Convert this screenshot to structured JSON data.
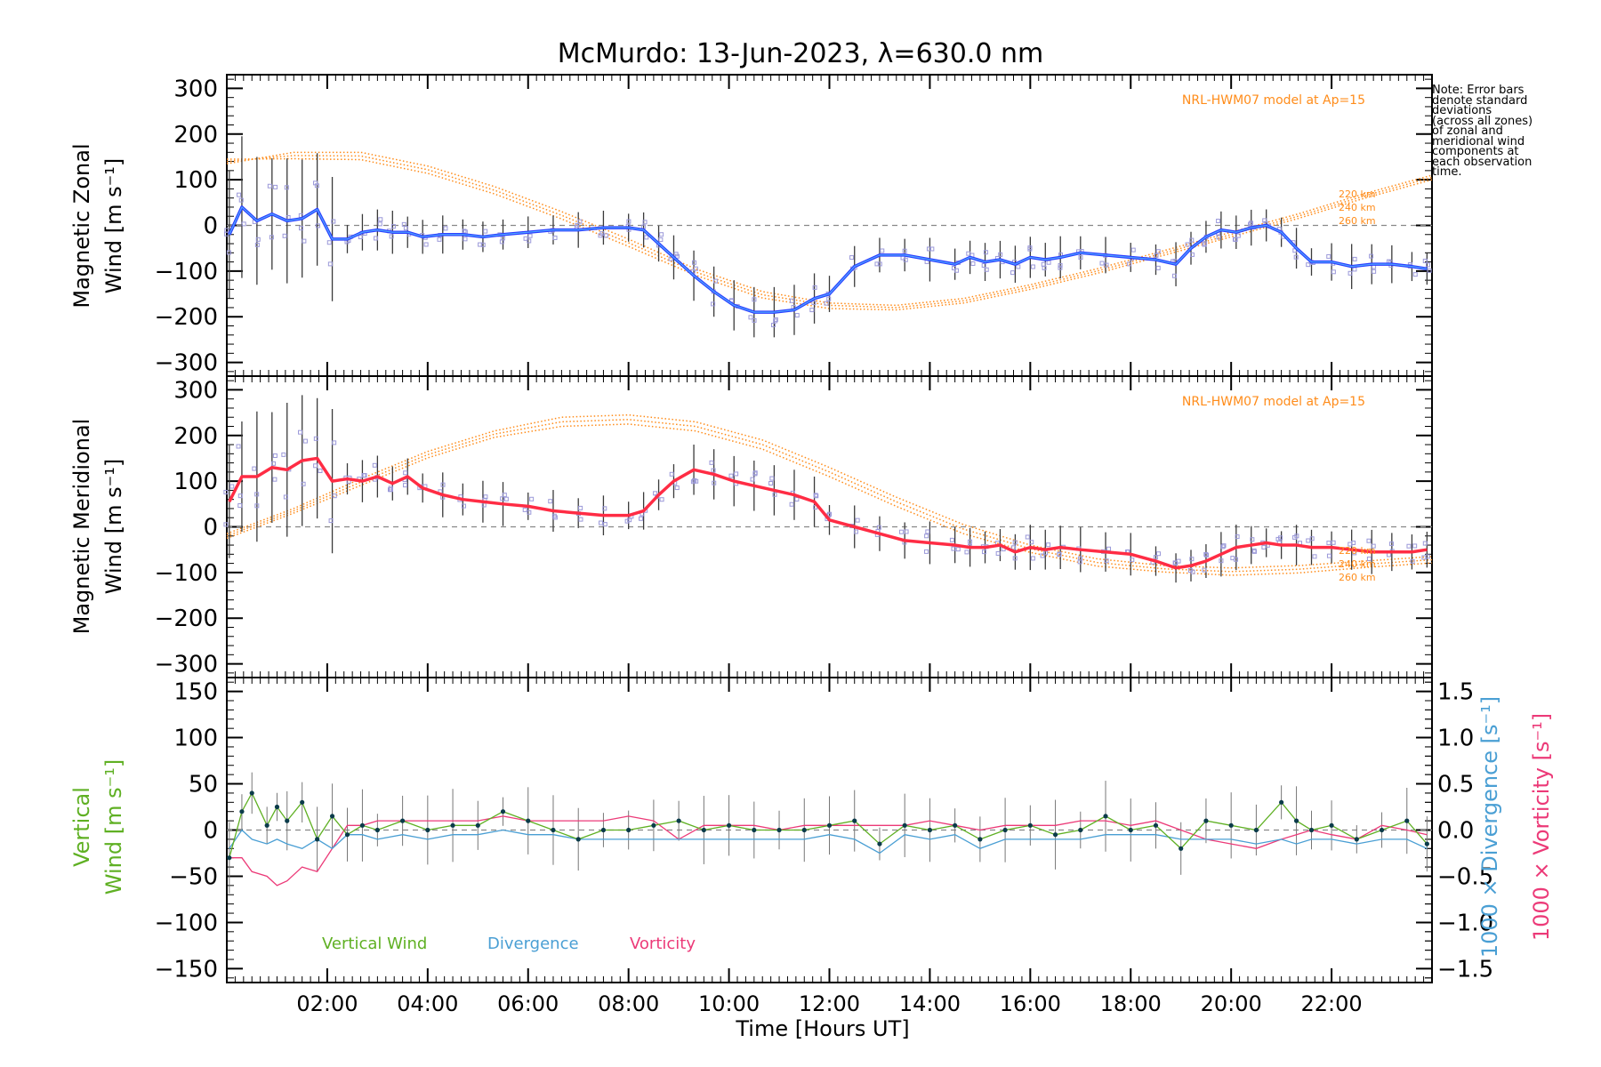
{
  "title": "McMurdo: 13-Jun-2023, λ=630.0 nm",
  "xlabel": "Time [Hours UT]",
  "x_ticks": [
    "02:00",
    "04:00",
    "06:00",
    "08:00",
    "10:00",
    "12:00",
    "14:00",
    "16:00",
    "18:00",
    "20:00",
    "22:00"
  ],
  "note_lines": [
    "Note: Error bars",
    "denote standard",
    "deviations",
    "(across all zones)",
    "of zonal and",
    "meridional wind",
    "components at",
    "each observation",
    "time."
  ],
  "model_label": "NRL-HWM07 model at Ap=15",
  "altitude_labels": [
    "220 km",
    "240 km",
    "260 km"
  ],
  "legend": {
    "vertical": "Vertical Wind",
    "divergence": "Divergence",
    "vorticity": "Vorticity"
  },
  "colors": {
    "zonal": "#2b3dff",
    "zonal_inner": "#4fa7ff",
    "meridional": "#ff2c44",
    "model": "#ff8c1a",
    "vertical": "#5fb023",
    "divergence": "#4a9fd4",
    "vorticity": "#ec3a78",
    "scatter": "#9b99d9"
  },
  "chart_data": [
    {
      "type": "line",
      "panel": "zonal",
      "ylabel_line1": "Magnetic Zonal",
      "ylabel_line2": "Wind [m s⁻¹]",
      "ylim": [
        -330,
        330
      ],
      "yticks": [
        "300",
        "200",
        "100",
        "0",
        "−100",
        "−200",
        "−300"
      ],
      "ytick_values": [
        300,
        200,
        100,
        0,
        -100,
        -200,
        -300
      ],
      "x_hours": [
        0.05,
        0.3,
        0.6,
        0.9,
        1.2,
        1.5,
        1.8,
        2.1,
        2.4,
        2.7,
        3.0,
        3.3,
        3.6,
        3.9,
        4.3,
        4.7,
        5.1,
        5.5,
        6.0,
        6.5,
        7.0,
        7.5,
        8.0,
        8.3,
        8.6,
        8.9,
        9.3,
        9.7,
        10.1,
        10.5,
        10.9,
        11.3,
        11.7,
        12.0,
        12.5,
        13.0,
        13.5,
        14.0,
        14.5,
        14.8,
        15.1,
        15.4,
        15.7,
        16.0,
        16.3,
        16.6,
        17.0,
        17.5,
        18.0,
        18.5,
        18.9,
        19.2,
        19.5,
        19.8,
        20.1,
        20.4,
        20.7,
        21.0,
        21.3,
        21.6,
        22.0,
        22.4,
        22.8,
        23.2,
        23.6,
        23.9
      ],
      "values": [
        -20,
        40,
        10,
        25,
        10,
        15,
        35,
        -30,
        -30,
        -15,
        -10,
        -15,
        -15,
        -25,
        -20,
        -20,
        -25,
        -20,
        -15,
        -10,
        -10,
        -5,
        -5,
        -10,
        -40,
        -70,
        -110,
        -145,
        -175,
        -190,
        -190,
        -185,
        -160,
        -150,
        -90,
        -65,
        -65,
        -75,
        -85,
        -70,
        -80,
        -75,
        -85,
        -70,
        -75,
        -70,
        -60,
        -65,
        -70,
        -75,
        -85,
        -50,
        -25,
        -10,
        -15,
        -5,
        0,
        -15,
        -50,
        -80,
        -80,
        -90,
        -85,
        -85,
        -90,
        -95
      ],
      "model_220": [
        135,
        160,
        160,
        130,
        85,
        30,
        -30,
        -95,
        -145,
        -170,
        -175,
        -160,
        -130,
        -95,
        -55,
        -15,
        25,
        70,
        110
      ],
      "model_240": [
        140,
        153,
        152,
        122,
        77,
        22,
        -38,
        -102,
        -152,
        -175,
        -180,
        -165,
        -135,
        -100,
        -60,
        -20,
        20,
        65,
        105
      ],
      "model_260": [
        145,
        146,
        144,
        114,
        69,
        14,
        -46,
        -109,
        -159,
        -182,
        -185,
        -170,
        -140,
        -105,
        -65,
        -25,
        15,
        60,
        100
      ],
      "model_hours": [
        0,
        1.33,
        2.67,
        4,
        5.33,
        6.67,
        8,
        9.33,
        10.67,
        12,
        13.33,
        14.67,
        16,
        17.33,
        18.67,
        20,
        21.33,
        22.67,
        24
      ]
    },
    {
      "type": "line",
      "panel": "meridional",
      "ylabel_line1": "Magnetic Meridional",
      "ylabel_line2": "Wind [m s⁻¹]",
      "ylim": [
        -330,
        330
      ],
      "yticks": [
        "300",
        "200",
        "100",
        "0",
        "−100",
        "−200",
        "−300"
      ],
      "ytick_values": [
        300,
        200,
        100,
        0,
        -100,
        -200,
        -300
      ],
      "x_hours": [
        0.05,
        0.3,
        0.6,
        0.9,
        1.2,
        1.5,
        1.8,
        2.1,
        2.4,
        2.7,
        3.0,
        3.3,
        3.6,
        3.9,
        4.3,
        4.7,
        5.1,
        5.5,
        6.0,
        6.5,
        7.0,
        7.5,
        8.0,
        8.3,
        8.6,
        8.9,
        9.3,
        9.7,
        10.1,
        10.5,
        10.9,
        11.3,
        11.7,
        12.0,
        12.5,
        13.0,
        13.5,
        14.0,
        14.5,
        14.8,
        15.1,
        15.4,
        15.7,
        16.0,
        16.3,
        16.6,
        17.0,
        17.5,
        18.0,
        18.5,
        18.9,
        19.2,
        19.5,
        19.8,
        20.1,
        20.4,
        20.7,
        21.0,
        21.3,
        21.6,
        22.0,
        22.4,
        22.8,
        23.2,
        23.6,
        23.9
      ],
      "values": [
        55,
        110,
        110,
        130,
        125,
        145,
        150,
        100,
        105,
        100,
        110,
        95,
        110,
        85,
        70,
        60,
        55,
        50,
        45,
        35,
        30,
        25,
        25,
        35,
        70,
        100,
        125,
        115,
        100,
        90,
        80,
        70,
        55,
        15,
        0,
        -15,
        -30,
        -35,
        -40,
        -45,
        -45,
        -40,
        -55,
        -45,
        -50,
        -45,
        -50,
        -55,
        -60,
        -75,
        -90,
        -85,
        -75,
        -60,
        -45,
        -40,
        -35,
        -40,
        -40,
        -45,
        -45,
        -50,
        -55,
        -55,
        -55,
        -50
      ],
      "model_220": [
        -15,
        40,
        105,
        165,
        210,
        240,
        245,
        230,
        190,
        130,
        65,
        5,
        -40,
        -70,
        -85,
        -90,
        -85,
        -75,
        -65
      ],
      "model_240": [
        -20,
        35,
        98,
        158,
        203,
        230,
        235,
        220,
        180,
        120,
        55,
        -5,
        -48,
        -78,
        -92,
        -98,
        -93,
        -82,
        -72
      ],
      "model_260": [
        -25,
        30,
        91,
        151,
        196,
        220,
        225,
        210,
        170,
        110,
        45,
        -15,
        -56,
        -86,
        -99,
        -106,
        -101,
        -89,
        -79
      ],
      "model_hours": [
        0,
        1.33,
        2.67,
        4,
        5.33,
        6.67,
        8,
        9.33,
        10.67,
        12,
        13.33,
        14.67,
        16,
        17.33,
        18.67,
        20,
        21.33,
        22.67,
        24
      ]
    },
    {
      "type": "line",
      "panel": "vertical",
      "ylabel_line1": "Vertical",
      "ylabel_line2": "Wind [m s⁻¹]",
      "right_label_divergence": "1000 × Divergence [s⁻¹]",
      "right_label_vorticity": "1000 × Vorticity [s⁻¹]",
      "ylim": [
        -165,
        165
      ],
      "yticks": [
        "150",
        "100",
        "50",
        "0",
        "−50",
        "−100",
        "−150"
      ],
      "ytick_values": [
        150,
        100,
        50,
        0,
        -50,
        -100,
        -150
      ],
      "y2lim": [
        -1.65,
        1.65
      ],
      "y2ticks": [
        "1.5",
        "1.0",
        "0.5",
        "0.0",
        "−0.5",
        "−1.0",
        "−1.5"
      ],
      "y2tick_values": [
        1.5,
        1.0,
        0.5,
        0.0,
        -0.5,
        -1.0,
        -1.5
      ],
      "x_hours": [
        0.05,
        0.3,
        0.5,
        0.8,
        1.0,
        1.2,
        1.5,
        1.8,
        2.1,
        2.4,
        2.7,
        3.0,
        3.5,
        4.0,
        4.5,
        5.0,
        5.5,
        6.0,
        6.5,
        7.0,
        7.5,
        8.0,
        8.5,
        9.0,
        9.5,
        10.0,
        10.5,
        11.0,
        11.5,
        12.0,
        12.5,
        13.0,
        13.5,
        14.0,
        14.5,
        15.0,
        15.5,
        16.0,
        16.5,
        17.0,
        17.5,
        18.0,
        18.5,
        19.0,
        19.5,
        20.0,
        20.5,
        21.0,
        21.3,
        21.6,
        22.0,
        22.5,
        23.0,
        23.5,
        23.9
      ],
      "vertical": [
        -30,
        20,
        40,
        5,
        25,
        10,
        30,
        -10,
        15,
        -5,
        5,
        0,
        10,
        0,
        5,
        5,
        20,
        10,
        0,
        -10,
        0,
        0,
        5,
        10,
        0,
        5,
        0,
        0,
        0,
        5,
        10,
        -15,
        5,
        0,
        5,
        -10,
        0,
        5,
        -5,
        0,
        15,
        0,
        5,
        -20,
        10,
        5,
        0,
        30,
        10,
        0,
        5,
        -10,
        0,
        10,
        -15
      ],
      "divergence": [
        -0.2,
        0.0,
        -0.1,
        -0.15,
        -0.1,
        -0.15,
        -0.2,
        -0.1,
        -0.2,
        -0.05,
        -0.05,
        -0.1,
        -0.05,
        -0.1,
        -0.05,
        -0.05,
        0.0,
        -0.05,
        -0.05,
        -0.1,
        -0.1,
        -0.1,
        -0.1,
        -0.1,
        -0.1,
        -0.1,
        -0.1,
        -0.1,
        -0.1,
        -0.05,
        -0.1,
        -0.25,
        -0.05,
        -0.1,
        -0.05,
        -0.2,
        -0.1,
        -0.1,
        -0.1,
        -0.1,
        -0.05,
        -0.05,
        -0.05,
        -0.1,
        -0.1,
        -0.1,
        -0.15,
        -0.1,
        -0.15,
        -0.1,
        -0.1,
        -0.15,
        -0.1,
        -0.1,
        -0.2
      ],
      "vorticity": [
        -0.3,
        -0.3,
        -0.45,
        -0.5,
        -0.6,
        -0.55,
        -0.4,
        -0.45,
        -0.2,
        0.05,
        0.05,
        0.1,
        0.1,
        0.1,
        0.1,
        0.1,
        0.15,
        0.1,
        0.1,
        0.1,
        0.1,
        0.15,
        0.1,
        -0.1,
        0.05,
        0.05,
        0.05,
        0.0,
        0.05,
        0.05,
        0.05,
        0.05,
        0.05,
        0.1,
        0.05,
        0.0,
        0.05,
        0.05,
        0.05,
        0.1,
        0.1,
        0.05,
        0.1,
        0.0,
        -0.1,
        -0.15,
        -0.2,
        -0.1,
        -0.05,
        0.0,
        -0.05,
        -0.1,
        0.05,
        0.0,
        -0.05
      ]
    }
  ]
}
